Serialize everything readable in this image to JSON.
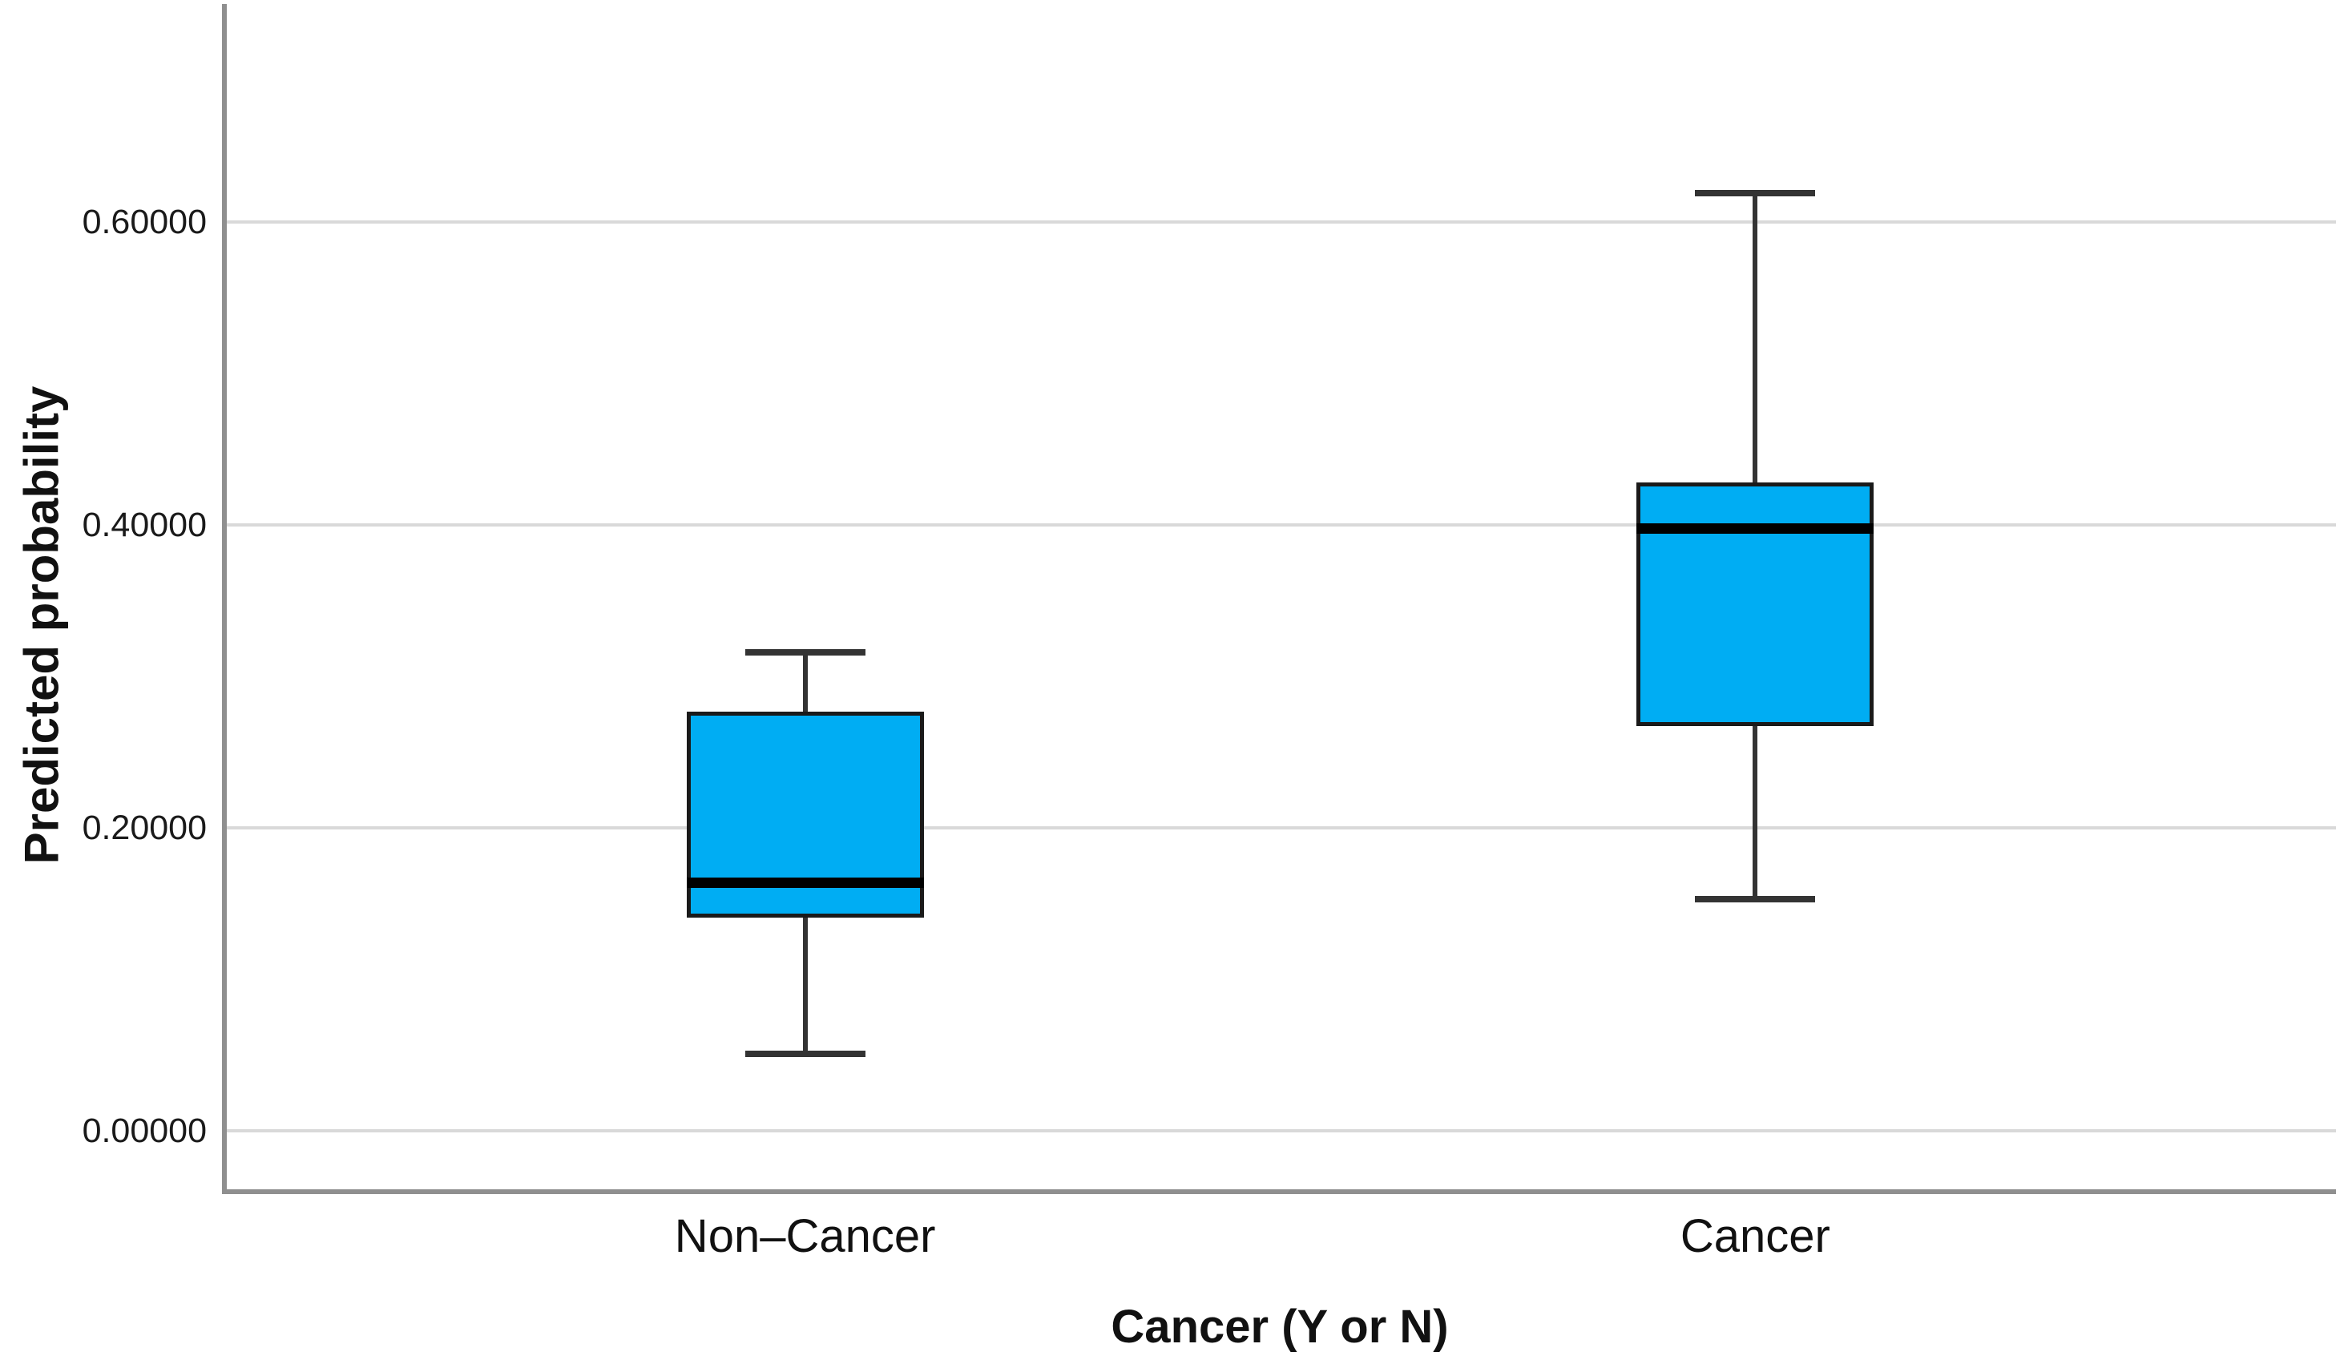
{
  "chart_data": {
    "type": "boxplot",
    "title": "",
    "xlabel": "Cancer (Y or N)",
    "ylabel": "Predicted probability",
    "categories": [
      "Non–Cancer",
      "Cancer"
    ],
    "yticks": {
      "values": [
        0.0,
        0.2,
        0.4,
        0.6
      ],
      "labels": [
        "0.00000",
        "0.20000",
        "0.40000",
        "0.60000"
      ]
    },
    "ylim": [
      -0.0402,
      0.744
    ],
    "grid": true,
    "legend": "none",
    "series": [
      {
        "name": "Non–Cancer",
        "min": 0.051,
        "q1": 0.141,
        "median": 0.164,
        "q3": 0.277,
        "max": 0.316
      },
      {
        "name": "Cancer",
        "min": 0.153,
        "q1": 0.267,
        "median": 0.398,
        "q3": 0.428,
        "max": 0.619
      }
    ],
    "colors": {
      "box_fill": "#00adf3",
      "box_border": "#1a1a1a",
      "median": "#000000",
      "whisker": "#333333",
      "gridline": "#d9d9d9",
      "axis": "#8f8f8f",
      "text": "#111111"
    }
  }
}
